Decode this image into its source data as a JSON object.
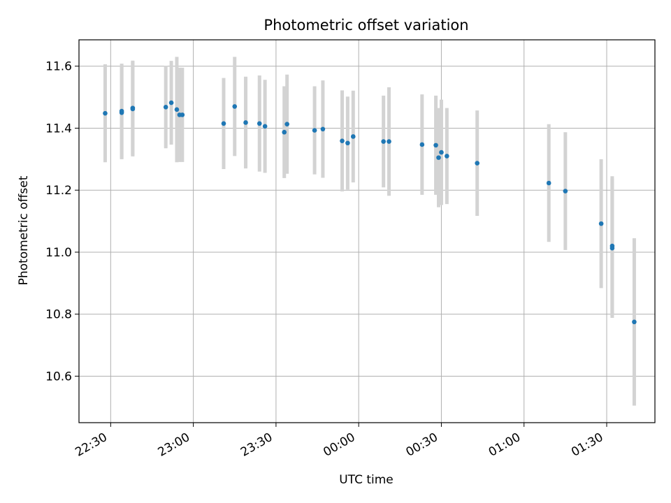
{
  "chart_data": {
    "type": "scatter",
    "title": "Photometric offset variation",
    "xlabel": "UTC time",
    "ylabel": "Photometric offset",
    "grid": true,
    "x_tick_labels": [
      "22:30",
      "23:00",
      "23:30",
      "00:00",
      "00:30",
      "01:00",
      "01:30"
    ],
    "x_tick_minutes": [
      0,
      30,
      60,
      90,
      120,
      150,
      180
    ],
    "xlim_minutes": [
      -11.5,
      197.5
    ],
    "y_ticks": [
      10.6,
      10.8,
      11.0,
      11.2,
      11.4,
      11.6
    ],
    "ylim": [
      10.45,
      11.685
    ],
    "marker_color": "#1f77b4",
    "errorbar_color": "#d3d3d3",
    "points": [
      {
        "t": "22:28",
        "y": 11.448,
        "err": 0.158
      },
      {
        "t": "22:34",
        "y": 11.455,
        "err": 0.153
      },
      {
        "t": "22:34",
        "y": 11.45,
        "err": 0.15
      },
      {
        "t": "22:38",
        "y": 11.462,
        "err": 0.153
      },
      {
        "t": "22:38",
        "y": 11.465,
        "err": 0.153
      },
      {
        "t": "22:50",
        "y": 11.468,
        "err": 0.133
      },
      {
        "t": "22:52",
        "y": 11.482,
        "err": 0.135
      },
      {
        "t": "22:54",
        "y": 11.46,
        "err": 0.17
      },
      {
        "t": "22:55",
        "y": 11.443,
        "err": 0.152
      },
      {
        "t": "22:56",
        "y": 11.443,
        "err": 0.152
      },
      {
        "t": "23:11",
        "y": 11.415,
        "err": 0.147
      },
      {
        "t": "23:15",
        "y": 11.47,
        "err": 0.16
      },
      {
        "t": "23:19",
        "y": 11.418,
        "err": 0.148
      },
      {
        "t": "23:24",
        "y": 11.415,
        "err": 0.155
      },
      {
        "t": "23:26",
        "y": 11.406,
        "err": 0.15
      },
      {
        "t": "23:33",
        "y": 11.387,
        "err": 0.148
      },
      {
        "t": "23:34",
        "y": 11.413,
        "err": 0.16
      },
      {
        "t": "23:44",
        "y": 11.393,
        "err": 0.142
      },
      {
        "t": "23:47",
        "y": 11.397,
        "err": 0.157
      },
      {
        "t": "23:54",
        "y": 11.359,
        "err": 0.163
      },
      {
        "t": "23:56",
        "y": 11.352,
        "err": 0.15
      },
      {
        "t": "23:58",
        "y": 11.373,
        "err": 0.148
      },
      {
        "t": "00:09",
        "y": 11.357,
        "err": 0.148
      },
      {
        "t": "00:11",
        "y": 11.357,
        "err": 0.175
      },
      {
        "t": "00:23",
        "y": 11.347,
        "err": 0.162
      },
      {
        "t": "00:28",
        "y": 11.345,
        "err": 0.16
      },
      {
        "t": "00:29",
        "y": 11.305,
        "err": 0.16
      },
      {
        "t": "00:30",
        "y": 11.322,
        "err": 0.17
      },
      {
        "t": "00:32",
        "y": 11.31,
        "err": 0.155
      },
      {
        "t": "00:43",
        "y": 11.287,
        "err": 0.17
      },
      {
        "t": "01:09",
        "y": 11.223,
        "err": 0.19
      },
      {
        "t": "01:15",
        "y": 11.197,
        "err": 0.19
      },
      {
        "t": "01:28",
        "y": 11.092,
        "err": 0.208
      },
      {
        "t": "01:32",
        "y": 11.02,
        "err": 0.225
      },
      {
        "t": "01:32",
        "y": 11.013,
        "err": 0.225
      },
      {
        "t": "01:40",
        "y": 10.775,
        "err": 0.27
      }
    ]
  }
}
